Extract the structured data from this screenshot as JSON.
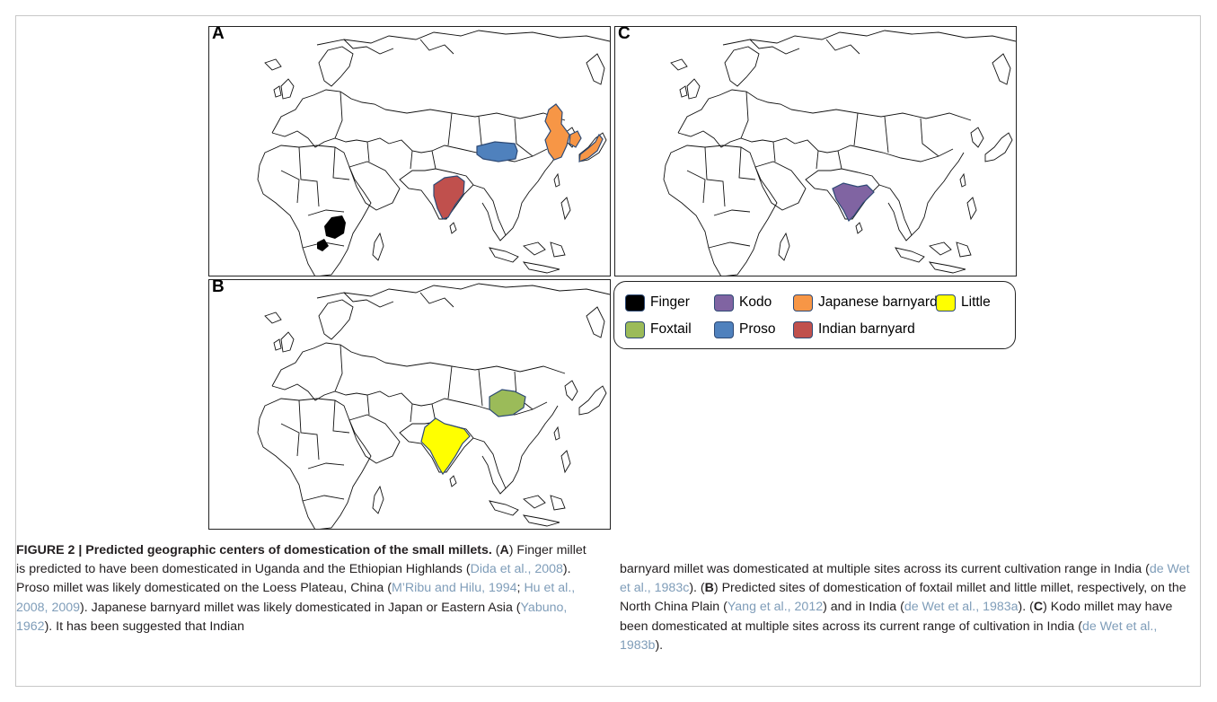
{
  "panels": [
    {
      "id": "A",
      "label": "A"
    },
    {
      "id": "C",
      "label": "C"
    },
    {
      "id": "B",
      "label": "B"
    }
  ],
  "legend": {
    "items": [
      {
        "label": "Finger",
        "color": "#000000"
      },
      {
        "label": "Kodo",
        "color": "#8064a2"
      },
      {
        "label": "Japanese barnyard",
        "color": "#f79646"
      },
      {
        "label": "Little",
        "color": "#ffff00"
      },
      {
        "label": "Foxtail",
        "color": "#9bbb59"
      },
      {
        "label": "Proso",
        "color": "#4f81bd"
      },
      {
        "label": "Indian barnyard",
        "color": "#c0504d"
      }
    ]
  },
  "regions": {
    "A": [
      "Finger",
      "Proso",
      "Japanese barnyard",
      "Indian barnyard"
    ],
    "B": [
      "Foxtail",
      "Little"
    ],
    "C": [
      "Kodo"
    ]
  },
  "caption": {
    "figure_label": "FIGURE 2 | Predicted geographic centers of domestication of the",
    "figure_label_2": "small millets.",
    "left": [
      {
        "t": " (",
        "s": "n"
      },
      {
        "t": "A",
        "s": "b"
      },
      {
        "t": ") Finger millet is predicted to have been domesticated in Uganda and the Ethiopian Highlands (",
        "s": "n"
      },
      {
        "t": "Dida et al., 2008",
        "s": "c"
      },
      {
        "t": "). Proso millet was likely domesticated on the Loess Plateau, China (",
        "s": "n"
      },
      {
        "t": "M’Ribu and Hilu, 1994",
        "s": "c"
      },
      {
        "t": "; ",
        "s": "n"
      },
      {
        "t": "Hu et al., 2008, 2009",
        "s": "c"
      },
      {
        "t": "). Japanese barnyard millet was likely domesticated in Japan or Eastern Asia (",
        "s": "n"
      },
      {
        "t": "Yabuno, 1962",
        "s": "c"
      },
      {
        "t": "). It has been suggested that Indian",
        "s": "n"
      }
    ],
    "right": [
      {
        "t": "barnyard millet was domesticated at multiple sites across its current cultivation range in India (",
        "s": "n"
      },
      {
        "t": "de Wet et al., 1983c",
        "s": "c"
      },
      {
        "t": "). (",
        "s": "n"
      },
      {
        "t": "B",
        "s": "b"
      },
      {
        "t": ") Predicted sites of domestication of foxtail millet and little millet, respectively, on the North China Plain (",
        "s": "n"
      },
      {
        "t": "Yang et al., 2012",
        "s": "c"
      },
      {
        "t": ") and in India (",
        "s": "n"
      },
      {
        "t": "de Wet et al., 1983a",
        "s": "c"
      },
      {
        "t": "). (",
        "s": "n"
      },
      {
        "t": "C",
        "s": "b"
      },
      {
        "t": ") Kodo millet may have been domesticated at multiple sites across its current range of cultivation in India (",
        "s": "n"
      },
      {
        "t": "de Wet et al., 1983b",
        "s": "c"
      },
      {
        "t": ").",
        "s": "n"
      }
    ]
  }
}
